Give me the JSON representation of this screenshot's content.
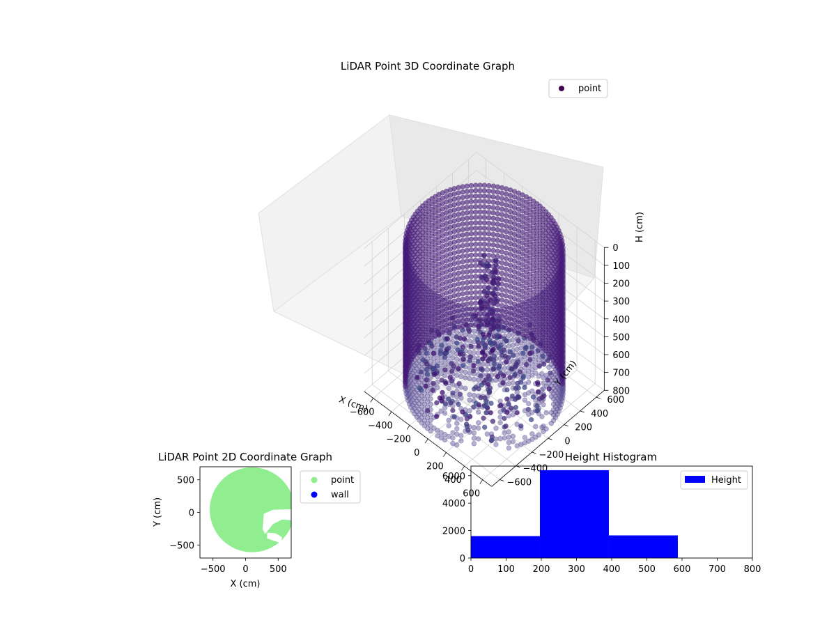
{
  "chart_data": [
    {
      "type": "scatter",
      "projection": "3d",
      "title": "LiDAR Point 3D Coordinate Graph",
      "xlabel": "X (cm)",
      "ylabel": "Y (cm)",
      "zlabel": "H (cm)",
      "xlim": [
        -700,
        700
      ],
      "ylim": [
        -700,
        700
      ],
      "zlim": [
        800,
        0
      ],
      "xticks": [
        -600,
        -400,
        -200,
        0,
        200,
        400,
        600
      ],
      "yticks": [
        -600,
        -400,
        -200,
        0,
        200,
        400,
        600
      ],
      "zticks": [
        0,
        100,
        200,
        300,
        400,
        500,
        600,
        700,
        800
      ],
      "grid": true,
      "legend": {
        "position": "top-right",
        "entries": [
          "point"
        ]
      },
      "colormap": "viridis",
      "series": [
        {
          "name": "point",
          "color": "#440154",
          "shape": "cylindrical wall of points, radius ~650 cm, height 0-800 cm, with inner clutter",
          "center": [
            0,
            0
          ],
          "radius": 650,
          "height_range": [
            0,
            800
          ]
        }
      ]
    },
    {
      "type": "scatter",
      "title": "LiDAR Point 2D Coordinate Graph",
      "xlabel": "X (cm)",
      "ylabel": "Y (cm)",
      "xlim": [
        -700,
        700
      ],
      "ylim": [
        -700,
        700
      ],
      "xticks": [
        -500,
        0,
        500
      ],
      "yticks": [
        500,
        0,
        -500
      ],
      "legend": {
        "position": "right",
        "entries": [
          "point",
          "wall"
        ]
      },
      "series": [
        {
          "name": "point",
          "color": "#90ee90",
          "shape": "filled disc of radius ~650 cm centred near (0,0) with a notch on the right"
        },
        {
          "name": "wall",
          "color": "#0000ff"
        }
      ]
    },
    {
      "type": "bar",
      "subtype": "histogram",
      "title": "Height Histogram",
      "xlabel": "",
      "ylabel": "",
      "xlim": [
        0,
        800
      ],
      "ylim": [
        0,
        6700
      ],
      "xticks": [
        0,
        100,
        200,
        300,
        400,
        500,
        600,
        700,
        800
      ],
      "yticks": [
        0,
        2000,
        4000,
        6000
      ],
      "legend": {
        "position": "top-right",
        "entries": [
          "Height"
        ]
      },
      "bins": [
        {
          "from": 0,
          "to": 196,
          "value": 1600
        },
        {
          "from": 196,
          "to": 392,
          "value": 6400
        },
        {
          "from": 392,
          "to": 588,
          "value": 1650
        },
        {
          "from": 588,
          "to": 784,
          "value": 0
        }
      ],
      "series": [
        {
          "name": "Height",
          "color": "#0000ff"
        }
      ]
    }
  ]
}
